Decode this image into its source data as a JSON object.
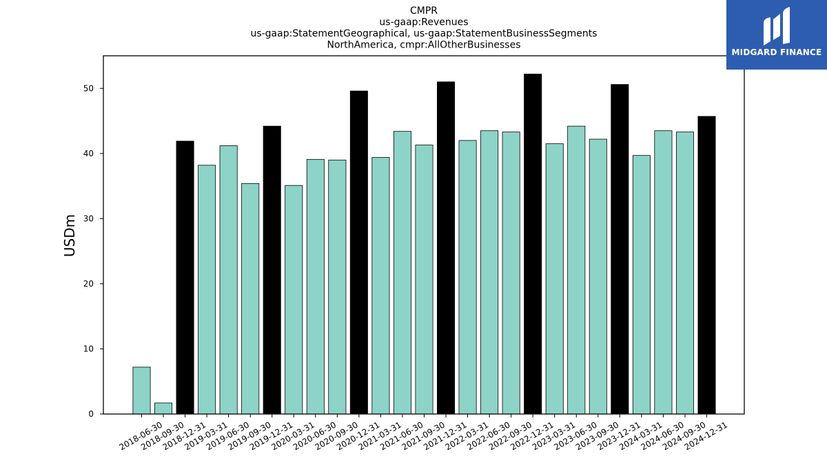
{
  "chart_data": {
    "type": "bar",
    "title_lines": [
      "CMPR",
      "us-gaap:Revenues",
      "us-gaap:StatementGeographical, us-gaap:StatementBusinessSegments",
      "NorthAmerica, cmpr:AllOtherBusinesses"
    ],
    "xlabel": "",
    "ylabel": "USDm",
    "ylim": [
      0,
      55
    ],
    "yticks": [
      0,
      10,
      20,
      30,
      40,
      50
    ],
    "grid": false,
    "legend": "none",
    "colors": {
      "quarter": "#8dd3c7",
      "year_end": "#000000",
      "edge": "#000000"
    },
    "categories": [
      "2018-06-30",
      "2018-09-30",
      "2018-12-31",
      "2019-03-31",
      "2019-06-30",
      "2019-09-30",
      "2019-12-31",
      "2020-03-31",
      "2020-06-30",
      "2020-09-30",
      "2020-12-31",
      "2021-03-31",
      "2021-06-30",
      "2021-09-30",
      "2021-12-31",
      "2022-03-31",
      "2022-06-30",
      "2022-09-30",
      "2022-12-31",
      "2023-03-31",
      "2023-06-30",
      "2023-09-30",
      "2023-12-31",
      "2024-03-31",
      "2024-06-30",
      "2024-09-30",
      "2024-12-31"
    ],
    "values": [
      7.2,
      1.7,
      41.9,
      38.2,
      41.2,
      35.4,
      44.2,
      35.1,
      39.1,
      39.0,
      49.6,
      39.4,
      43.4,
      41.3,
      51.0,
      42.0,
      43.5,
      43.3,
      52.2,
      41.5,
      44.2,
      42.2,
      50.6,
      39.7,
      43.5,
      43.3,
      45.7
    ]
  },
  "logo": {
    "text": "MIDGARD FINANCE",
    "icon": "midgard-logo-icon"
  }
}
